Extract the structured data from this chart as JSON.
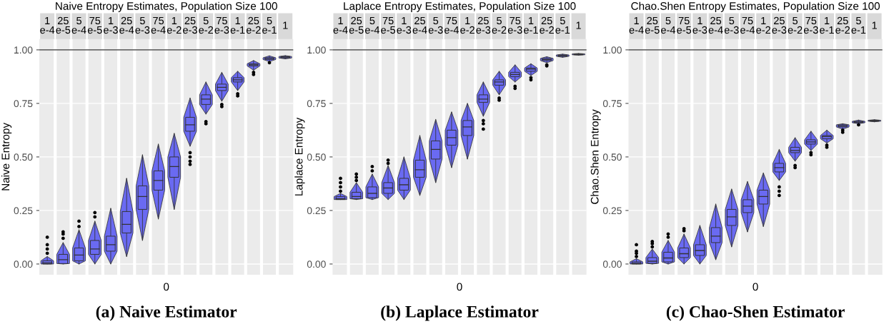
{
  "chart_data": [
    {
      "type": "box",
      "title": "Naive Entropy Estimates, Population Size 100",
      "ylabel": "Naive Entropy",
      "xlabel": "0",
      "categories": [
        "1\ne-4",
        "25\ne-5",
        "5\ne-4",
        "75\ne-5",
        "1\ne-3",
        "25\ne-4",
        "5\ne-3",
        "75\ne-4",
        "1\ne-2",
        "25\ne-3",
        "5\ne-2",
        "75\ne-3",
        "1\ne-1",
        "25\ne-2",
        "5\ne-1",
        "1"
      ],
      "series": [
        {
          "color": "#6a6af2",
          "boxes": [
            {
              "low": 0,
              "q1": 0,
              "median": 0.005,
              "q3": 0.015,
              "high": 0.035,
              "outliers": [
                0.05,
                0.07,
                0.09,
                0.125
              ]
            },
            {
              "low": 0,
              "q1": 0.002,
              "median": 0.02,
              "q3": 0.045,
              "high": 0.1,
              "outliers": [
                0.12,
                0.14,
                0.15
              ]
            },
            {
              "low": 0,
              "q1": 0.015,
              "median": 0.042,
              "q3": 0.075,
              "high": 0.16,
              "outliers": [
                0.175,
                0.2
              ]
            },
            {
              "low": 0,
              "q1": 0.045,
              "median": 0.07,
              "q3": 0.11,
              "high": 0.2,
              "outliers": [
                0.22,
                0.24
              ]
            },
            {
              "low": 0,
              "q1": 0.06,
              "median": 0.09,
              "q3": 0.13,
              "high": 0.26
            },
            {
              "low": 0.035,
              "q1": 0.145,
              "median": 0.185,
              "q3": 0.245,
              "high": 0.4
            },
            {
              "low": 0.11,
              "q1": 0.255,
              "median": 0.315,
              "q3": 0.365,
              "high": 0.51
            },
            {
              "low": 0.21,
              "q1": 0.345,
              "median": 0.39,
              "q3": 0.435,
              "high": 0.56
            },
            {
              "low": 0.255,
              "q1": 0.405,
              "median": 0.455,
              "q3": 0.5,
              "high": 0.61
            },
            {
              "low": 0.55,
              "q1": 0.62,
              "median": 0.65,
              "q3": 0.685,
              "high": 0.775,
              "outliers": [
                0.465,
                0.48,
                0.5,
                0.52
              ]
            },
            {
              "low": 0.7,
              "q1": 0.745,
              "median": 0.77,
              "q3": 0.79,
              "high": 0.85,
              "outliers": [
                0.655,
                0.665
              ]
            },
            {
              "low": 0.76,
              "q1": 0.81,
              "median": 0.825,
              "q3": 0.84,
              "high": 0.895,
              "outliers": [
                0.735,
                0.745
              ]
            },
            {
              "low": 0.81,
              "q1": 0.85,
              "median": 0.86,
              "q3": 0.87,
              "high": 0.9,
              "outliers": [
                0.785,
                0.795
              ]
            },
            {
              "low": 0.905,
              "q1": 0.925,
              "median": 0.93,
              "q3": 0.935,
              "high": 0.95,
              "outliers": [
                0.885,
                0.895
              ]
            },
            {
              "low": 0.945,
              "q1": 0.955,
              "median": 0.96,
              "q3": 0.963,
              "high": 0.972,
              "outliers": [
                0.94
              ]
            },
            {
              "low": 0.958,
              "q1": 0.962,
              "median": 0.966,
              "q3": 0.969,
              "high": 0.973
            }
          ]
        }
      ],
      "ylim": [
        -0.05,
        1.05
      ],
      "yticks": [
        {
          "value": 0,
          "label": "0.00"
        },
        {
          "value": 0.25,
          "label": "0.25"
        },
        {
          "value": 0.5,
          "label": "0.50"
        },
        {
          "value": 0.75,
          "label": "0.75"
        },
        {
          "value": 1,
          "label": "1.00"
        }
      ],
      "ref_lines": [
        {
          "axis": "y",
          "value": 1,
          "color": "#333333"
        }
      ],
      "grid": "y",
      "annotations": [
        "(a) Naive Estimator"
      ]
    },
    {
      "type": "box",
      "title": "Laplace Entropy Estimates, Population Size 100",
      "ylabel": "Laplace Entropy",
      "xlabel": "0",
      "categories": [
        "1\ne-4",
        "25\ne-5",
        "5\ne-4",
        "75\ne-5",
        "1\ne-3",
        "25\ne-4",
        "5\ne-3",
        "75\ne-4",
        "1\ne-2",
        "25\ne-3",
        "5\ne-2",
        "75\ne-3",
        "1\ne-1",
        "25\ne-2",
        "5\ne-1",
        "1"
      ],
      "series": [
        {
          "color": "#6a6af2",
          "boxes": [
            {
              "low": 0.301,
              "q1": 0.301,
              "median": 0.305,
              "q3": 0.315,
              "high": 0.33,
              "outliers": [
                0.34,
                0.36,
                0.38,
                0.4
              ]
            },
            {
              "low": 0.301,
              "q1": 0.305,
              "median": 0.315,
              "q3": 0.335,
              "high": 0.38,
              "outliers": [
                0.39,
                0.405,
                0.42
              ]
            },
            {
              "low": 0.301,
              "q1": 0.31,
              "median": 0.33,
              "q3": 0.36,
              "high": 0.42,
              "outliers": [
                0.435,
                0.455
              ]
            },
            {
              "low": 0.301,
              "q1": 0.33,
              "median": 0.355,
              "q3": 0.38,
              "high": 0.46,
              "outliers": [
                0.47,
                0.485
              ]
            },
            {
              "low": 0.301,
              "q1": 0.345,
              "median": 0.37,
              "q3": 0.4,
              "high": 0.5
            },
            {
              "low": 0.32,
              "q1": 0.405,
              "median": 0.44,
              "q3": 0.485,
              "high": 0.6
            },
            {
              "low": 0.38,
              "q1": 0.49,
              "median": 0.535,
              "q3": 0.575,
              "high": 0.675
            },
            {
              "low": 0.45,
              "q1": 0.555,
              "median": 0.59,
              "q3": 0.625,
              "high": 0.71
            },
            {
              "low": 0.49,
              "q1": 0.6,
              "median": 0.64,
              "q3": 0.67,
              "high": 0.75
            },
            {
              "low": 0.69,
              "q1": 0.755,
              "median": 0.77,
              "q3": 0.79,
              "high": 0.85,
              "outliers": [
                0.63,
                0.655,
                0.67
              ]
            },
            {
              "low": 0.79,
              "q1": 0.835,
              "median": 0.85,
              "q3": 0.86,
              "high": 0.9,
              "outliers": [
                0.765,
                0.775
              ]
            },
            {
              "low": 0.85,
              "q1": 0.875,
              "median": 0.885,
              "q3": 0.895,
              "high": 0.93,
              "outliers": [
                0.82,
                0.83
              ]
            },
            {
              "low": 0.88,
              "q1": 0.9,
              "median": 0.91,
              "q3": 0.915,
              "high": 0.935,
              "outliers": [
                0.86,
                0.87
              ]
            },
            {
              "low": 0.94,
              "q1": 0.95,
              "median": 0.955,
              "q3": 0.96,
              "high": 0.968,
              "outliers": [
                0.925,
                0.93
              ]
            },
            {
              "low": 0.965,
              "q1": 0.97,
              "median": 0.973,
              "q3": 0.976,
              "high": 0.98
            },
            {
              "low": 0.975,
              "q1": 0.977,
              "median": 0.979,
              "q3": 0.981,
              "high": 0.983
            }
          ]
        }
      ],
      "ylim": [
        -0.05,
        1.05
      ],
      "yticks": [
        {
          "value": 0,
          "label": "0.00"
        },
        {
          "value": 0.25,
          "label": "0.25"
        },
        {
          "value": 0.5,
          "label": "0.50"
        },
        {
          "value": 0.75,
          "label": "0.75"
        },
        {
          "value": 1,
          "label": "1.00"
        }
      ],
      "ref_lines": [
        {
          "axis": "y",
          "value": 1,
          "color": "#333333"
        }
      ],
      "grid": "y",
      "annotations": [
        "(b) Laplace Estimator"
      ]
    },
    {
      "type": "box",
      "title": "Chao.Shen Entropy Estimates, Population Size 100",
      "ylabel": "Chao.Shen Entropy",
      "xlabel": "0",
      "categories": [
        "1\ne-4",
        "25\ne-5",
        "5\ne-4",
        "75\ne-5",
        "1\ne-3",
        "25\ne-4",
        "5\ne-3",
        "75\ne-4",
        "1\ne-2",
        "25\ne-3",
        "5\ne-2",
        "75\ne-3",
        "1\ne-1",
        "25\ne-2",
        "5\ne-1",
        "1"
      ],
      "series": [
        {
          "color": "#6a6af2",
          "boxes": [
            {
              "low": 0,
              "q1": 0,
              "median": 0.003,
              "q3": 0.01,
              "high": 0.025,
              "outliers": [
                0.035,
                0.05,
                0.06,
                0.09
              ]
            },
            {
              "low": 0,
              "q1": 0.003,
              "median": 0.013,
              "q3": 0.03,
              "high": 0.07,
              "outliers": [
                0.08,
                0.095,
                0.105
              ]
            },
            {
              "low": 0,
              "q1": 0.01,
              "median": 0.028,
              "q3": 0.055,
              "high": 0.11,
              "outliers": [
                0.125,
                0.14
              ]
            },
            {
              "low": 0,
              "q1": 0.03,
              "median": 0.048,
              "q3": 0.075,
              "high": 0.14,
              "outliers": [
                0.155,
                0.165
              ]
            },
            {
              "low": 0,
              "q1": 0.04,
              "median": 0.063,
              "q3": 0.09,
              "high": 0.18
            },
            {
              "low": 0.02,
              "q1": 0.1,
              "median": 0.13,
              "q3": 0.17,
              "high": 0.28
            },
            {
              "low": 0.08,
              "q1": 0.18,
              "median": 0.22,
              "q3": 0.255,
              "high": 0.35
            },
            {
              "low": 0.15,
              "q1": 0.24,
              "median": 0.27,
              "q3": 0.3,
              "high": 0.385
            },
            {
              "low": 0.175,
              "q1": 0.28,
              "median": 0.315,
              "q3": 0.345,
              "high": 0.425
            },
            {
              "low": 0.39,
              "q1": 0.43,
              "median": 0.45,
              "q3": 0.47,
              "high": 0.535,
              "outliers": [
                0.32,
                0.34,
                0.36
              ]
            },
            {
              "low": 0.48,
              "q1": 0.52,
              "median": 0.53,
              "q3": 0.545,
              "high": 0.59,
              "outliers": [
                0.45,
                0.46
              ]
            },
            {
              "low": 0.53,
              "q1": 0.56,
              "median": 0.57,
              "q3": 0.58,
              "high": 0.62,
              "outliers": [
                0.51,
                0.52
              ]
            },
            {
              "low": 0.565,
              "q1": 0.585,
              "median": 0.595,
              "q3": 0.6,
              "high": 0.625,
              "outliers": [
                0.545,
                0.555
              ]
            },
            {
              "low": 0.63,
              "q1": 0.64,
              "median": 0.645,
              "q3": 0.65,
              "high": 0.655,
              "outliers": [
                0.615,
                0.625
              ]
            },
            {
              "low": 0.655,
              "q1": 0.66,
              "median": 0.663,
              "q3": 0.666,
              "high": 0.672,
              "outliers": [
                0.65
              ]
            },
            {
              "low": 0.664,
              "q1": 0.667,
              "median": 0.669,
              "q3": 0.671,
              "high": 0.674
            }
          ]
        }
      ],
      "ylim": [
        -0.05,
        1.05
      ],
      "yticks": [
        {
          "value": 0,
          "label": "0.00"
        },
        {
          "value": 0.25,
          "label": "0.25"
        },
        {
          "value": 0.5,
          "label": "0.50"
        },
        {
          "value": 0.75,
          "label": "0.75"
        },
        {
          "value": 1,
          "label": "1.00"
        }
      ],
      "ref_lines": [
        {
          "axis": "y",
          "value": 1,
          "color": "#333333"
        }
      ],
      "grid": "y",
      "annotations": [
        "(c) Chao-Shen Estimator"
      ]
    }
  ]
}
